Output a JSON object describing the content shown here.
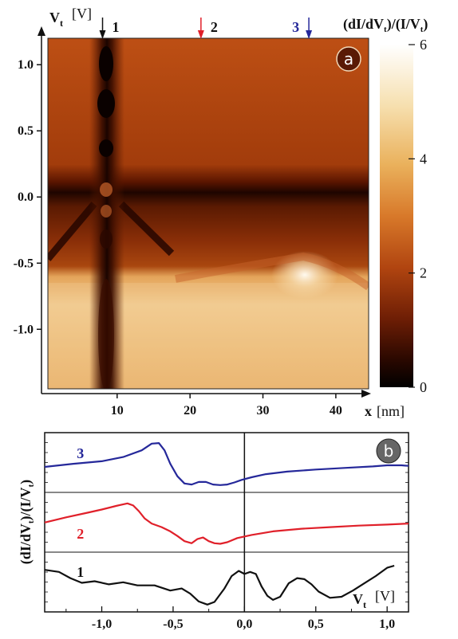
{
  "chart_data": [
    {
      "type": "heatmap",
      "panel_label": "a",
      "xlabel": "x",
      "xunit": "[nm]",
      "ylabel": "V",
      "ylabel_sub": "t",
      "yunit": "[V]",
      "x_ticks": [
        "10",
        "20",
        "30",
        "40"
      ],
      "x_tick_values": [
        10,
        20,
        30,
        40
      ],
      "y_ticks": [
        "1.0",
        "0.5",
        "0.0",
        "-0.5",
        "-1.0"
      ],
      "y_tick_values": [
        1.0,
        0.5,
        0.0,
        -0.5,
        -1.0
      ],
      "xlim": [
        0.5,
        44.5
      ],
      "ylim": [
        -1.45,
        1.2
      ],
      "colorbar": {
        "title": "(dI/dV_t)/(I/V_t)",
        "ticks": [
          "0",
          "2",
          "4",
          "6"
        ],
        "tick_values": [
          0,
          2,
          4,
          6
        ],
        "range": [
          0,
          6
        ]
      },
      "markers": [
        {
          "label": "1",
          "x": 8.0,
          "color": "#111111"
        },
        {
          "label": "2",
          "x": 21.5,
          "color": "#e0202a"
        },
        {
          "label": "3",
          "x": 36.3,
          "color": "#25289a"
        }
      ]
    },
    {
      "type": "line",
      "panel_label": "b",
      "xlabel": "V",
      "xlabel_sub": "t",
      "xunit": "[V]",
      "ylabel": "(dI/dV_t)/(I/V_t)",
      "x_ticks": [
        "-1,0",
        "-0,5",
        "0,0",
        "0,5",
        "1,0"
      ],
      "x_tick_values": [
        -1.0,
        -0.5,
        0.0,
        0.5,
        1.0
      ],
      "xlim": [
        -1.4,
        1.15
      ],
      "series": [
        {
          "name": "3",
          "color": "#25289a",
          "x": [
            -1.4,
            -1.2,
            -1.0,
            -0.85,
            -0.72,
            -0.65,
            -0.6,
            -0.56,
            -0.52,
            -0.47,
            -0.42,
            -0.37,
            -0.32,
            -0.27,
            -0.22,
            -0.17,
            -0.12,
            -0.07,
            -0.02,
            0.05,
            0.15,
            0.3,
            0.5,
            0.7,
            0.9,
            1.0,
            1.1,
            1.15
          ],
          "y": [
            2.0,
            2.3,
            2.55,
            2.95,
            3.6,
            4.25,
            4.3,
            3.6,
            2.3,
            1.1,
            0.4,
            0.3,
            0.55,
            0.55,
            0.3,
            0.25,
            0.3,
            0.5,
            0.75,
            1.0,
            1.3,
            1.55,
            1.75,
            1.9,
            2.05,
            2.15,
            2.15,
            2.1
          ]
        },
        {
          "name": "2",
          "color": "#e0202a",
          "x": [
            -1.4,
            -1.25,
            -1.1,
            -1.0,
            -0.9,
            -0.82,
            -0.78,
            -0.74,
            -0.7,
            -0.65,
            -0.58,
            -0.52,
            -0.47,
            -0.42,
            -0.37,
            -0.33,
            -0.29,
            -0.25,
            -0.21,
            -0.17,
            -0.12,
            -0.05,
            0.05,
            0.2,
            0.4,
            0.6,
            0.8,
            1.0,
            1.15
          ],
          "y": [
            2.4,
            2.9,
            3.35,
            3.65,
            4.0,
            4.25,
            4.05,
            3.5,
            2.8,
            2.3,
            1.95,
            1.55,
            1.1,
            0.6,
            0.4,
            0.8,
            0.95,
            0.6,
            0.4,
            0.35,
            0.5,
            0.9,
            1.2,
            1.55,
            1.8,
            1.95,
            2.1,
            2.2,
            2.3
          ]
        },
        {
          "name": "1",
          "color": "#111111",
          "x": [
            -1.4,
            -1.3,
            -1.22,
            -1.14,
            -1.05,
            -0.95,
            -0.85,
            -0.75,
            -0.63,
            -0.52,
            -0.44,
            -0.38,
            -0.32,
            -0.26,
            -0.21,
            -0.14,
            -0.09,
            -0.04,
            0.0,
            0.04,
            0.08,
            0.12,
            0.16,
            0.2,
            0.25,
            0.31,
            0.37,
            0.42,
            0.47,
            0.52,
            0.6,
            0.68,
            0.76,
            0.84,
            0.92,
            1.0,
            1.05
          ],
          "y": [
            3.6,
            3.4,
            2.8,
            2.35,
            2.5,
            2.2,
            2.4,
            2.1,
            2.1,
            1.6,
            1.8,
            1.3,
            0.55,
            0.25,
            0.5,
            1.8,
            3.0,
            3.5,
            3.2,
            3.4,
            3.2,
            2.0,
            1.1,
            0.7,
            1.0,
            2.3,
            2.8,
            2.7,
            2.2,
            1.5,
            0.9,
            1.0,
            1.6,
            2.3,
            3.0,
            3.8,
            4.0
          ]
        }
      ]
    }
  ]
}
